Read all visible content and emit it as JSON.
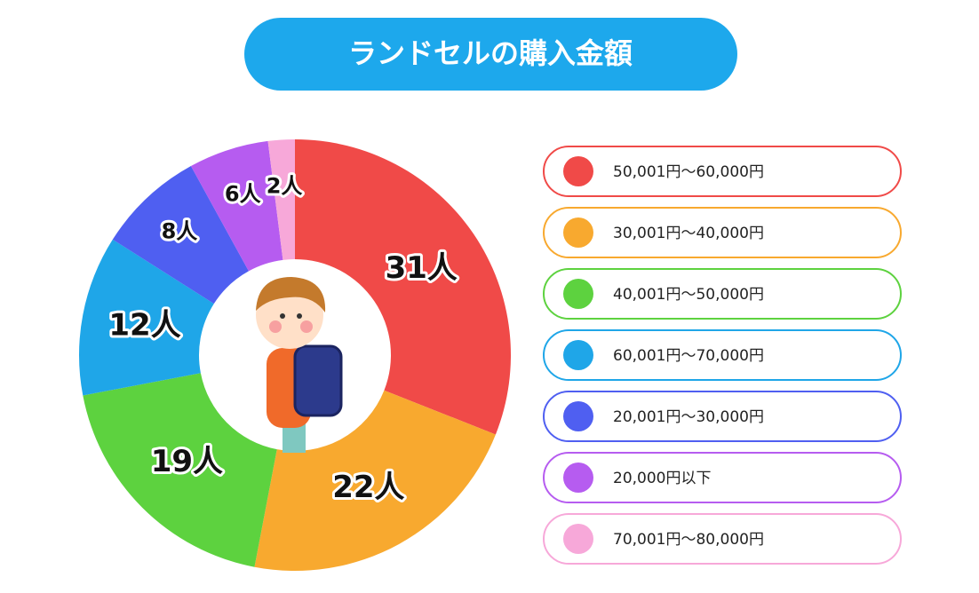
{
  "chart_data": {
    "type": "pie",
    "title": "ランドセルの購入金額",
    "categories": [
      "50,001円～60,000円",
      "30,001円～40,000円",
      "40,001円～50,000円",
      "60,001円～70,000円",
      "20,001円～30,000円",
      "20,000円以下",
      "70,001円～80,000円"
    ],
    "values": [
      31,
      22,
      19,
      12,
      8,
      6,
      2
    ],
    "value_labels": [
      "31人",
      "22人",
      "19人",
      "12人",
      "8人",
      "6人",
      "2人"
    ],
    "colors": [
      "#f04a48",
      "#f8a92f",
      "#5dd23f",
      "#1fa6e8",
      "#4f5ff1",
      "#b65cf0",
      "#f7a8d9"
    ]
  }
}
